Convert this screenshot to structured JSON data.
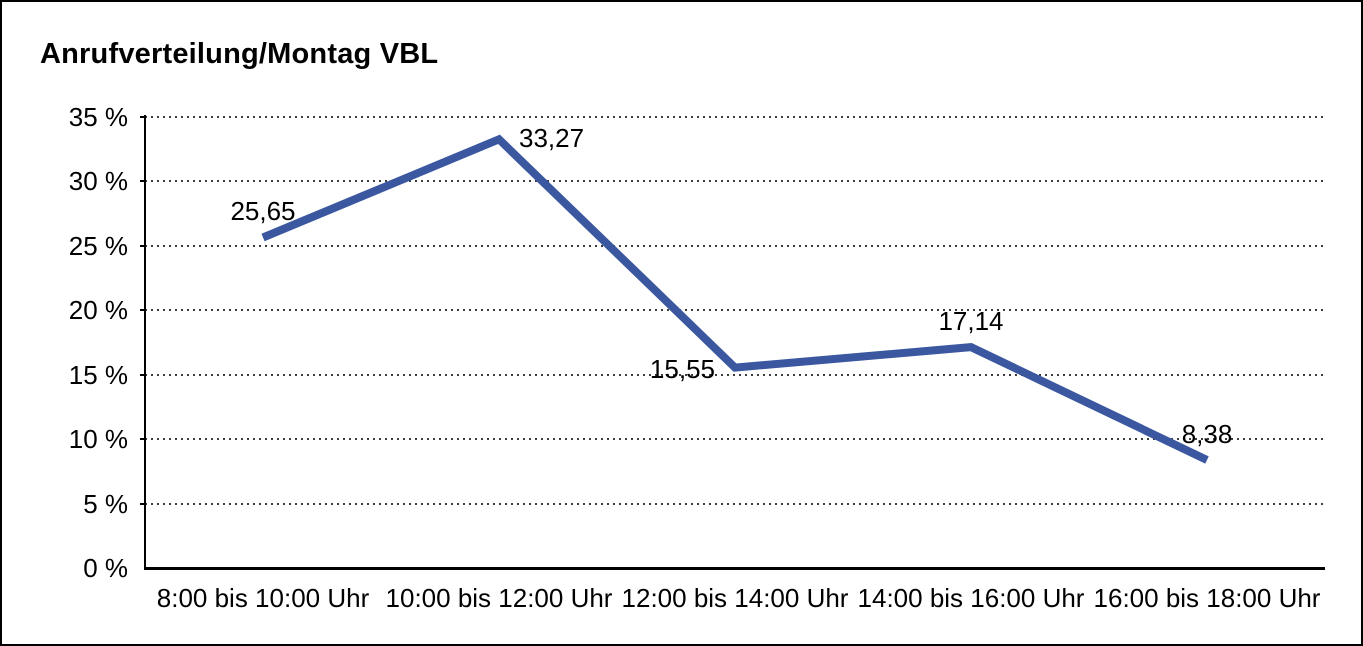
{
  "frame": {
    "background": "#FFFFFF",
    "border_color": "#000000"
  },
  "title": "Anrufverteilung/Montag VBL",
  "chart_data": {
    "type": "line",
    "title": "Anrufverteilung/Montag VBL",
    "categories": [
      "8:00 bis 10:00 Uhr",
      "10:00 bis 12:00 Uhr",
      "12:00 bis 14:00 Uhr",
      "14:00 bis 16:00 Uhr",
      "16:00 bis 18:00 Uhr"
    ],
    "series": [
      {
        "name": "Anrufverteilung Montag VBL",
        "values": [
          25.65,
          33.27,
          15.55,
          17.14,
          8.38
        ],
        "point_labels": [
          "25,65",
          "33,27",
          "15,55",
          "17,14",
          "8,38"
        ],
        "point_label_placement": [
          "above",
          "right",
          "left",
          "above",
          "above"
        ]
      }
    ],
    "xlabel": "",
    "ylabel": "",
    "y_axis": {
      "min": 0,
      "max": 35,
      "tick_step": 5,
      "tick_labels": [
        "0 %",
        "5 %",
        "10 %",
        "15 %",
        "20 %",
        "25 %",
        "30 %",
        "35 %"
      ],
      "unit": "%"
    },
    "grid": {
      "horizontal": true,
      "style": "dotted",
      "vertical": false
    },
    "legend": "none",
    "colors": {
      "line": "#3A57A0",
      "axis": "#000000",
      "grid": "#3C3C3C",
      "text": "#000000"
    },
    "line_width": 8
  }
}
